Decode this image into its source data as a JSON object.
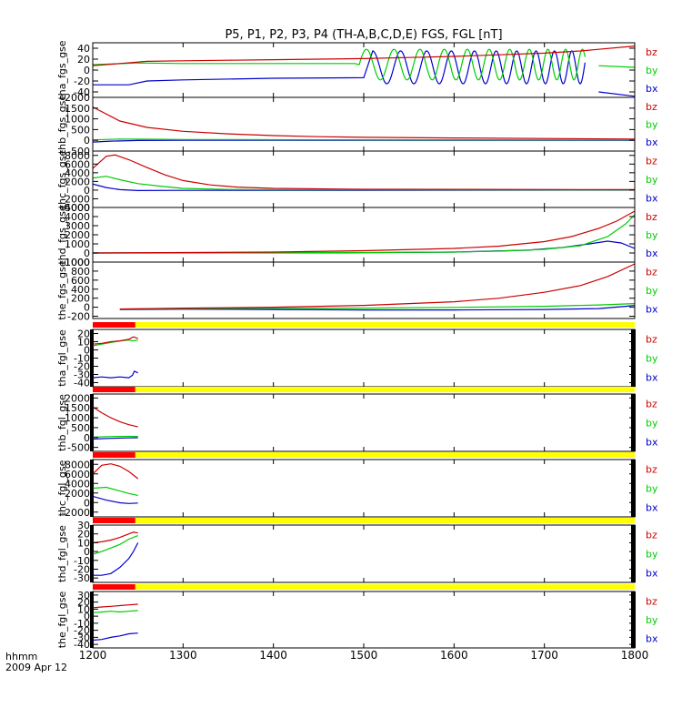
{
  "figure": {
    "title": "P5, P1, P2, P3, P4 (TH-A,B,C,D,E) FGS, FGL [nT]",
    "time_label": "hhmm",
    "date_label": "2009 Apr 12",
    "x_ticks": [
      "1200",
      "1300",
      "1400",
      "1500",
      "1600",
      "1700",
      "1800"
    ]
  },
  "colors": {
    "bx": "#0000cc",
    "by": "#00cc00",
    "bz": "#cc0000",
    "bar_yellow": "#ffff00",
    "bar_red": "#ff0000"
  },
  "chart_data": {
    "type": "line",
    "x_range": [
      1200,
      1800
    ],
    "x_unit": "hhmm",
    "panels": [
      {
        "ylabel": "tha_fgs_gse",
        "yrange": [
          -50,
          50
        ],
        "yticks": [
          "-40",
          "-20",
          "0",
          "20",
          "40"
        ],
        "ytick_values": [
          -40,
          -20,
          0,
          20,
          40
        ],
        "legend": [
          "bz",
          "by",
          "bx"
        ],
        "status_bar": false,
        "series": [
          {
            "name": "bz",
            "x": [
              1200,
              1230,
              1260,
              1300,
              1350,
              1400,
              1450,
              1500,
              1550,
              1600,
              1650,
              1700,
              1740,
              1760,
              1800
            ],
            "y": [
              8,
              12,
              16,
              17,
              18,
              19,
              20,
              21,
              23,
              25,
              28,
              31,
              35,
              38,
              44
            ]
          },
          {
            "name": "by",
            "x": [
              1200,
              1250,
              1300,
              1400,
              1490,
              1745,
              1760,
              1800
            ],
            "y": [
              10,
              13,
              12,
              12,
              12,
              null,
              8,
              5
            ],
            "osc": {
              "from": 1495,
              "to": 1745,
              "p0": 32,
              "p1": 16,
              "amp": 28,
              "mean": 10,
              "phase": 0
            }
          },
          {
            "name": "bx",
            "x": [
              1200,
              1240,
              1260,
              1300,
              1400,
              1500,
              1745,
              1760,
              1800
            ],
            "y": [
              -27,
              -27,
              -20,
              -18,
              -15,
              -14,
              null,
              -40,
              -48
            ],
            "osc": {
              "from": 1510,
              "to": 1745,
              "p0": 32,
              "p1": 16,
              "amp": 30,
              "mean": 5,
              "phase": 1.6
            }
          }
        ]
      },
      {
        "ylabel": "thb_fgs_gse",
        "yrange": [
          -500,
          2000
        ],
        "yticks": [
          "-500",
          "0",
          "500",
          "1000",
          "1500",
          "2000"
        ],
        "ytick_values": [
          -500,
          0,
          500,
          1000,
          1500,
          2000
        ],
        "legend": [
          "bz",
          "by",
          "bx"
        ],
        "status_bar": false,
        "series": [
          {
            "name": "bz",
            "x": [
              1200,
              1230,
              1260,
              1300,
              1350,
              1400,
              1450,
              1500,
              1600,
              1800
            ],
            "y": [
              1550,
              900,
              600,
              420,
              300,
              220,
              170,
              140,
              110,
              60
            ]
          },
          {
            "name": "by",
            "x": [
              1200,
              1230,
              1260,
              1300,
              1400,
              1500,
              1800
            ],
            "y": [
              20,
              60,
              50,
              40,
              30,
              25,
              20
            ]
          },
          {
            "name": "bx",
            "x": [
              1200,
              1220,
              1250,
              1300,
              1400,
              1800
            ],
            "y": [
              -80,
              -40,
              -10,
              0,
              0,
              0
            ]
          }
        ]
      },
      {
        "ylabel": "thc_fgs_gse",
        "yrange": [
          -4000,
          9000
        ],
        "yticks": [
          "-4000",
          "-2000",
          "0",
          "2000",
          "4000",
          "6000",
          "8000"
        ],
        "ytick_values": [
          -4000,
          -2000,
          0,
          2000,
          4000,
          6000,
          8000
        ],
        "legend": [
          "bz",
          "by",
          "bx"
        ],
        "status_bar": false,
        "series": [
          {
            "name": "bz",
            "x": [
              1200,
              1215,
              1225,
              1240,
              1260,
              1280,
              1300,
              1330,
              1360,
              1400,
              1500,
              1800
            ],
            "y": [
              5000,
              7800,
              8100,
              7000,
              5200,
              3500,
              2200,
              1200,
              700,
              400,
              200,
              100
            ]
          },
          {
            "name": "by",
            "x": [
              1200,
              1215,
              1230,
              1250,
              1280,
              1300,
              1350,
              1400,
              1800
            ],
            "y": [
              2800,
              3200,
              2400,
              1500,
              800,
              400,
              150,
              80,
              50
            ]
          },
          {
            "name": "bx",
            "x": [
              1200,
              1215,
              1230,
              1250,
              1300,
              1800
            ],
            "y": [
              1400,
              600,
              100,
              -100,
              -50,
              0
            ]
          }
        ]
      },
      {
        "ylabel": "thd_fgs_gse",
        "yrange": [
          -1000,
          5000
        ],
        "yticks": [
          "-1000",
          "0",
          "1000",
          "2000",
          "3000",
          "4000",
          "5000"
        ],
        "ytick_values": [
          -1000,
          0,
          1000,
          2000,
          3000,
          4000,
          5000
        ],
        "legend": [
          "bz",
          "by",
          "bx"
        ],
        "status_bar": false,
        "series": [
          {
            "name": "bz",
            "x": [
              1200,
              1400,
              1500,
              1600,
              1650,
              1700,
              1730,
              1760,
              1780,
              1800
            ],
            "y": [
              0,
              100,
              250,
              500,
              750,
              1250,
              1800,
              2700,
              3500,
              4600
            ]
          },
          {
            "name": "by",
            "x": [
              1200,
              1500,
              1600,
              1650,
              1700,
              1740,
              1770,
              1790,
              1800
            ],
            "y": [
              0,
              50,
              100,
              200,
              400,
              800,
              1800,
              3200,
              4200
            ]
          },
          {
            "name": "bx",
            "x": [
              1200,
              1500,
              1600,
              1680,
              1720,
              1750,
              1770,
              1785,
              1800
            ],
            "y": [
              0,
              30,
              100,
              300,
              600,
              1000,
              1300,
              1100,
              500
            ]
          }
        ]
      },
      {
        "ylabel": "the_fgs_gse",
        "yrange": [
          -250,
          1000
        ],
        "yticks": [
          "-200",
          "0",
          "200",
          "400",
          "600",
          "800",
          "1000"
        ],
        "ytick_values": [
          -200,
          0,
          200,
          400,
          600,
          800,
          1000
        ],
        "legend": [
          "bz",
          "by",
          "bx"
        ],
        "status_bar": false,
        "series": [
          {
            "name": "bz",
            "x": [
              1230,
              1300,
              1400,
              1500,
              1600,
              1650,
              1700,
              1740,
              1770,
              1800
            ],
            "y": [
              -40,
              -20,
              0,
              40,
              120,
              200,
              330,
              480,
              680,
              960
            ]
          },
          {
            "name": "by",
            "x": [
              1230,
              1300,
              1400,
              1500,
              1600,
              1700,
              1760,
              1800
            ],
            "y": [
              -40,
              -30,
              -25,
              -20,
              -5,
              20,
              50,
              80
            ]
          },
          {
            "name": "bx",
            "x": [
              1230,
              1300,
              1400,
              1500,
              1600,
              1700,
              1760,
              1790,
              1800
            ],
            "y": [
              -50,
              -45,
              -50,
              -60,
              -60,
              -50,
              -30,
              20,
              40
            ]
          }
        ]
      },
      {
        "ylabel": "tha_fgl_gse",
        "yrange": [
          -45,
          25
        ],
        "yticks": [
          "-40",
          "-30",
          "-20",
          "-10",
          "0",
          "10",
          "20"
        ],
        "ytick_values": [
          -40,
          -30,
          -20,
          -10,
          0,
          10,
          20
        ],
        "legend": [
          "bz",
          "by",
          "bx"
        ],
        "status_bar": true,
        "series": [
          {
            "name": "bz",
            "x": [
              1200,
              1210,
              1220,
              1230,
              1240,
              1245,
              1250
            ],
            "y": [
              7,
              8,
              10,
              11,
              13,
              16,
              14
            ]
          },
          {
            "name": "by",
            "x": [
              1200,
              1210,
              1220,
              1230,
              1240,
              1245,
              1250
            ],
            "y": [
              5,
              7,
              9,
              11,
              12,
              11,
              12
            ]
          },
          {
            "name": "bx",
            "x": [
              1200,
              1210,
              1220,
              1230,
              1240,
              1244,
              1246,
              1250
            ],
            "y": [
              -34,
              -33,
              -34,
              -33,
              -34,
              -31,
              -26,
              -28
            ]
          }
        ]
      },
      {
        "ylabel": "thb_fgl_gse",
        "yrange": [
          -700,
          2200
        ],
        "yticks": [
          "-500",
          "0",
          "500",
          "1000",
          "1500",
          "2000"
        ],
        "ytick_values": [
          -500,
          0,
          500,
          1000,
          1500,
          2000
        ],
        "legend": [
          "bz",
          "by",
          "bx"
        ],
        "status_bar": true,
        "series": [
          {
            "name": "bz",
            "x": [
              1200,
              1210,
              1220,
              1230,
              1240,
              1250
            ],
            "y": [
              1550,
              1250,
              1000,
              800,
              650,
              540
            ]
          },
          {
            "name": "by",
            "x": [
              1200,
              1220,
              1240,
              1250
            ],
            "y": [
              20,
              50,
              60,
              55
            ]
          },
          {
            "name": "bx",
            "x": [
              1200,
              1220,
              1240,
              1250
            ],
            "y": [
              -80,
              -40,
              -20,
              -10
            ]
          }
        ]
      },
      {
        "ylabel": "thc_fgl_gse",
        "yrange": [
          -3000,
          9000
        ],
        "yticks": [
          "-2000",
          "0",
          "2000",
          "4000",
          "6000",
          "8000"
        ],
        "ytick_values": [
          -2000,
          0,
          2000,
          4000,
          6000,
          8000
        ],
        "legend": [
          "bz",
          "by",
          "bx"
        ],
        "status_bar": true,
        "series": [
          {
            "name": "bz",
            "x": [
              1200,
              1210,
              1220,
              1230,
              1240,
              1250
            ],
            "y": [
              6000,
              7800,
              8100,
              7600,
              6500,
              5000
            ]
          },
          {
            "name": "by",
            "x": [
              1200,
              1215,
              1230,
              1240,
              1250
            ],
            "y": [
              3000,
              3200,
              2400,
              1900,
              1500
            ]
          },
          {
            "name": "bx",
            "x": [
              1200,
              1215,
              1230,
              1240,
              1250
            ],
            "y": [
              1300,
              500,
              -50,
              -200,
              -100
            ]
          }
        ]
      },
      {
        "ylabel": "thd_fgl_gse",
        "yrange": [
          -35,
          30
        ],
        "yticks": [
          "-30",
          "-20",
          "-10",
          "0",
          "10",
          "20",
          "30"
        ],
        "ytick_values": [
          -30,
          -20,
          -10,
          0,
          10,
          20,
          30
        ],
        "legend": [
          "bz",
          "by",
          "bx"
        ],
        "status_bar": true,
        "series": [
          {
            "name": "bz",
            "x": [
              1200,
              1210,
              1220,
              1230,
              1240,
              1245,
              1250
            ],
            "y": [
              10,
              11,
              13,
              16,
              20,
              22,
              21
            ]
          },
          {
            "name": "by",
            "x": [
              1200,
              1210,
              1220,
              1230,
              1240,
              1250
            ],
            "y": [
              -3,
              0,
              4,
              8,
              14,
              18
            ]
          },
          {
            "name": "bx",
            "x": [
              1200,
              1210,
              1220,
              1230,
              1240,
              1245,
              1250
            ],
            "y": [
              -27,
              -27,
              -25,
              -18,
              -8,
              0,
              10
            ]
          }
        ]
      },
      {
        "ylabel": "the_fgl_gse",
        "yrange": [
          -45,
          35
        ],
        "yticks": [
          "-40",
          "-30",
          "-20",
          "-10",
          "0",
          "10",
          "20",
          "30"
        ],
        "ytick_values": [
          -40,
          -30,
          -20,
          -10,
          0,
          10,
          20,
          30
        ],
        "legend": [
          "bz",
          "by",
          "bx"
        ],
        "status_bar": true,
        "series": [
          {
            "name": "bz",
            "x": [
              1200,
              1210,
              1220,
              1230,
              1240,
              1250
            ],
            "y": [
              12,
              13,
              14,
              15,
              16,
              17
            ]
          },
          {
            "name": "by",
            "x": [
              1200,
              1210,
              1220,
              1230,
              1240,
              1250
            ],
            "y": [
              5,
              6,
              7,
              6,
              7,
              8
            ]
          },
          {
            "name": "bx",
            "x": [
              1200,
              1210,
              1220,
              1230,
              1240,
              1250
            ],
            "y": [
              -34,
              -33,
              -30,
              -28,
              -25,
              -24
            ]
          }
        ]
      }
    ]
  }
}
